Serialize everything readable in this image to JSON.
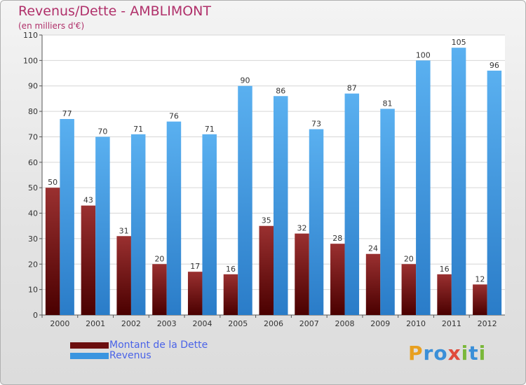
{
  "header": {
    "title": "Revenus/Dette - AMBLIMONT",
    "subtitle": "(en milliers d'€)"
  },
  "chart_data": {
    "type": "bar",
    "categories": [
      "2000",
      "2001",
      "2002",
      "2003",
      "2004",
      "2005",
      "2006",
      "2007",
      "2008",
      "2009",
      "2010",
      "2011",
      "2012"
    ],
    "series": [
      {
        "name": "Montant de la Dette",
        "values": [
          50,
          43,
          31,
          20,
          17,
          16,
          35,
          32,
          28,
          24,
          20,
          16,
          12
        ],
        "color": "#8b1a1a"
      },
      {
        "name": "Revenus",
        "values": [
          77,
          70,
          71,
          76,
          71,
          90,
          86,
          73,
          87,
          81,
          100,
          105,
          96
        ],
        "color": "#3a95e0"
      }
    ],
    "ylim": [
      0,
      110
    ],
    "yticks": [
      0,
      10,
      20,
      30,
      40,
      50,
      60,
      70,
      80,
      90,
      100,
      110
    ],
    "grid": true,
    "legend_position": "bottom-left"
  },
  "legend": {
    "items": [
      {
        "label": "Montant de la Dette",
        "color": "#6b0f0f"
      },
      {
        "label": "Revenus",
        "color": "#3a95e0"
      }
    ]
  },
  "logo": {
    "letters": [
      {
        "ch": "P",
        "color": "#e8a020"
      },
      {
        "ch": "r",
        "color": "#3a8fd8"
      },
      {
        "ch": "o",
        "color": "#3a8fd8"
      },
      {
        "ch": "x",
        "color": "#e04a3a"
      },
      {
        "ch": "i",
        "color": "#7ab83a"
      },
      {
        "ch": "t",
        "color": "#3a8fd8"
      },
      {
        "ch": "i",
        "color": "#7ab83a"
      }
    ]
  }
}
